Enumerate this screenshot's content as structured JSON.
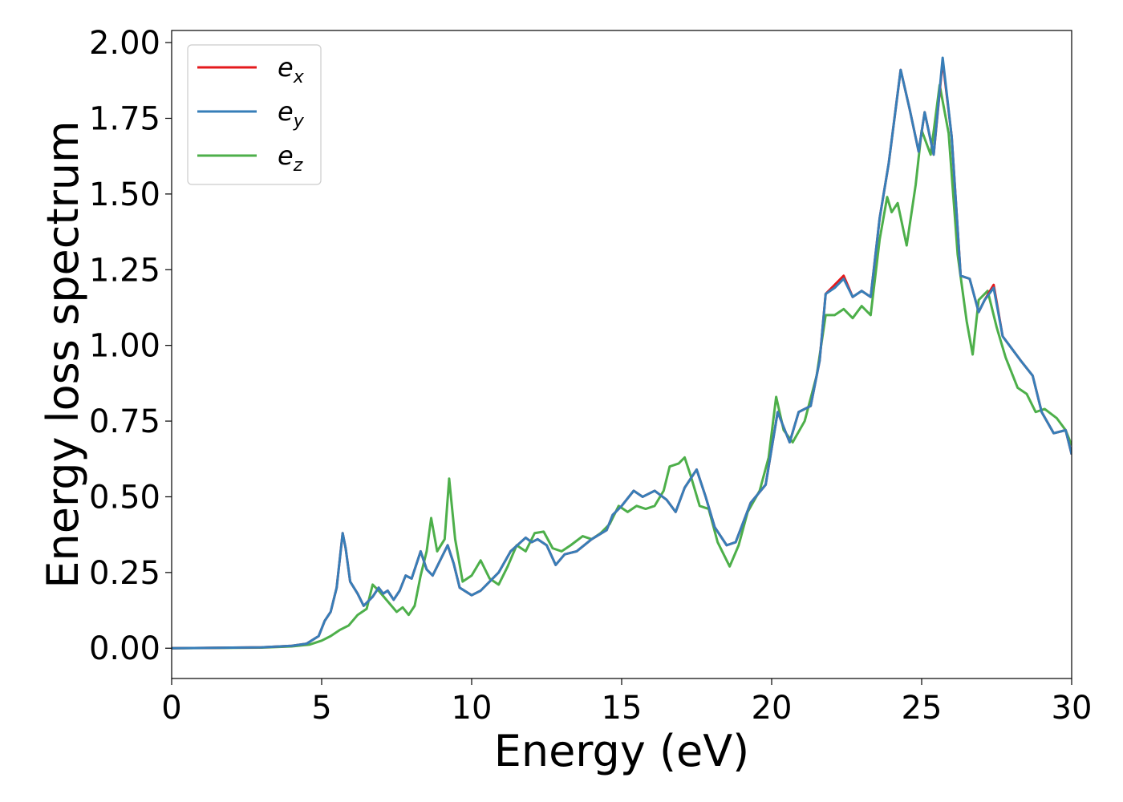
{
  "chart_data": {
    "type": "line",
    "title": "",
    "xlabel": "Energy (eV)",
    "ylabel": "Energy loss spectrum",
    "xlim": [
      0,
      30
    ],
    "ylim": [
      -0.1,
      2.04
    ],
    "xticks": [
      0,
      5,
      10,
      15,
      20,
      25,
      30
    ],
    "xtick_labels": [
      "0",
      "5",
      "10",
      "15",
      "20",
      "25",
      "30"
    ],
    "yticks": [
      0.0,
      0.25,
      0.5,
      0.75,
      1.0,
      1.25,
      1.5,
      1.75,
      2.0
    ],
    "ytick_labels": [
      "0.00",
      "0.25",
      "0.50",
      "0.75",
      "1.00",
      "1.25",
      "1.50",
      "1.75",
      "2.00"
    ],
    "grid": false,
    "legend_position": "top-left",
    "series": [
      {
        "name": "e",
        "subscript": "x",
        "color": "#e41a1c",
        "points": [
          [
            0,
            0
          ],
          [
            3,
            0.003
          ],
          [
            4,
            0.008
          ],
          [
            4.5,
            0.015
          ],
          [
            4.9,
            0.04
          ],
          [
            5.1,
            0.09
          ],
          [
            5.3,
            0.12
          ],
          [
            5.5,
            0.2
          ],
          [
            5.7,
            0.38
          ],
          [
            5.8,
            0.33
          ],
          [
            5.95,
            0.22
          ],
          [
            6.2,
            0.18
          ],
          [
            6.4,
            0.14
          ],
          [
            6.7,
            0.17
          ],
          [
            6.9,
            0.2
          ],
          [
            7.05,
            0.18
          ],
          [
            7.2,
            0.19
          ],
          [
            7.4,
            0.16
          ],
          [
            7.6,
            0.19
          ],
          [
            7.8,
            0.24
          ],
          [
            8.0,
            0.23
          ],
          [
            8.3,
            0.32
          ],
          [
            8.5,
            0.26
          ],
          [
            8.7,
            0.24
          ],
          [
            8.9,
            0.28
          ],
          [
            9.2,
            0.34
          ],
          [
            9.4,
            0.28
          ],
          [
            9.6,
            0.2
          ],
          [
            10.0,
            0.175
          ],
          [
            10.3,
            0.19
          ],
          [
            10.6,
            0.22
          ],
          [
            10.9,
            0.25
          ],
          [
            11.3,
            0.32
          ],
          [
            11.8,
            0.365
          ],
          [
            12.0,
            0.35
          ],
          [
            12.2,
            0.36
          ],
          [
            12.5,
            0.34
          ],
          [
            12.8,
            0.275
          ],
          [
            13.1,
            0.31
          ],
          [
            13.5,
            0.32
          ],
          [
            14.0,
            0.36
          ],
          [
            14.5,
            0.39
          ],
          [
            14.7,
            0.44
          ],
          [
            15.0,
            0.47
          ],
          [
            15.4,
            0.52
          ],
          [
            15.7,
            0.5
          ],
          [
            16.1,
            0.52
          ],
          [
            16.5,
            0.49
          ],
          [
            16.8,
            0.45
          ],
          [
            17.1,
            0.53
          ],
          [
            17.5,
            0.59
          ],
          [
            17.8,
            0.5
          ],
          [
            18.1,
            0.4
          ],
          [
            18.5,
            0.34
          ],
          [
            18.8,
            0.35
          ],
          [
            19.3,
            0.48
          ],
          [
            19.8,
            0.54
          ],
          [
            20.2,
            0.78
          ],
          [
            20.6,
            0.68
          ],
          [
            20.9,
            0.78
          ],
          [
            21.3,
            0.8
          ],
          [
            21.6,
            0.95
          ],
          [
            21.8,
            1.17
          ],
          [
            22.1,
            1.2
          ],
          [
            22.4,
            1.23
          ],
          [
            22.7,
            1.16
          ],
          [
            23.0,
            1.18
          ],
          [
            23.3,
            1.16
          ],
          [
            23.6,
            1.42
          ],
          [
            23.9,
            1.6
          ],
          [
            24.3,
            1.91
          ],
          [
            24.6,
            1.78
          ],
          [
            24.9,
            1.64
          ],
          [
            25.1,
            1.77
          ],
          [
            25.4,
            1.63
          ],
          [
            25.7,
            1.94
          ],
          [
            26.0,
            1.69
          ],
          [
            26.3,
            1.23
          ],
          [
            26.6,
            1.22
          ],
          [
            26.9,
            1.11
          ],
          [
            27.1,
            1.15
          ],
          [
            27.4,
            1.2
          ],
          [
            27.7,
            1.03
          ],
          [
            28.0,
            0.99
          ],
          [
            28.3,
            0.95
          ],
          [
            28.7,
            0.9
          ],
          [
            29.0,
            0.78
          ],
          [
            29.4,
            0.71
          ],
          [
            29.8,
            0.72
          ],
          [
            30,
            0.64
          ]
        ]
      },
      {
        "name": "e",
        "subscript": "y",
        "color": "#377eb8",
        "points": [
          [
            0,
            0
          ],
          [
            3,
            0.003
          ],
          [
            4,
            0.008
          ],
          [
            4.5,
            0.015
          ],
          [
            4.9,
            0.04
          ],
          [
            5.1,
            0.09
          ],
          [
            5.3,
            0.12
          ],
          [
            5.5,
            0.2
          ],
          [
            5.7,
            0.38
          ],
          [
            5.8,
            0.33
          ],
          [
            5.95,
            0.22
          ],
          [
            6.2,
            0.18
          ],
          [
            6.4,
            0.14
          ],
          [
            6.7,
            0.17
          ],
          [
            6.9,
            0.2
          ],
          [
            7.05,
            0.18
          ],
          [
            7.2,
            0.19
          ],
          [
            7.4,
            0.16
          ],
          [
            7.6,
            0.19
          ],
          [
            7.8,
            0.24
          ],
          [
            8.0,
            0.23
          ],
          [
            8.3,
            0.32
          ],
          [
            8.5,
            0.26
          ],
          [
            8.7,
            0.24
          ],
          [
            8.9,
            0.28
          ],
          [
            9.2,
            0.34
          ],
          [
            9.4,
            0.28
          ],
          [
            9.6,
            0.2
          ],
          [
            10.0,
            0.175
          ],
          [
            10.3,
            0.19
          ],
          [
            10.6,
            0.22
          ],
          [
            10.9,
            0.25
          ],
          [
            11.3,
            0.32
          ],
          [
            11.8,
            0.365
          ],
          [
            12.0,
            0.35
          ],
          [
            12.2,
            0.36
          ],
          [
            12.5,
            0.34
          ],
          [
            12.8,
            0.275
          ],
          [
            13.1,
            0.31
          ],
          [
            13.5,
            0.32
          ],
          [
            14.0,
            0.36
          ],
          [
            14.5,
            0.39
          ],
          [
            14.7,
            0.44
          ],
          [
            15.0,
            0.47
          ],
          [
            15.4,
            0.52
          ],
          [
            15.7,
            0.5
          ],
          [
            16.1,
            0.52
          ],
          [
            16.5,
            0.49
          ],
          [
            16.8,
            0.45
          ],
          [
            17.1,
            0.53
          ],
          [
            17.5,
            0.59
          ],
          [
            17.8,
            0.5
          ],
          [
            18.1,
            0.4
          ],
          [
            18.5,
            0.34
          ],
          [
            18.8,
            0.35
          ],
          [
            19.3,
            0.48
          ],
          [
            19.8,
            0.54
          ],
          [
            20.2,
            0.78
          ],
          [
            20.6,
            0.68
          ],
          [
            20.9,
            0.78
          ],
          [
            21.3,
            0.8
          ],
          [
            21.6,
            0.95
          ],
          [
            21.8,
            1.17
          ],
          [
            22.1,
            1.19
          ],
          [
            22.4,
            1.22
          ],
          [
            22.7,
            1.16
          ],
          [
            23.0,
            1.18
          ],
          [
            23.3,
            1.16
          ],
          [
            23.6,
            1.42
          ],
          [
            23.9,
            1.6
          ],
          [
            24.3,
            1.91
          ],
          [
            24.6,
            1.78
          ],
          [
            24.9,
            1.64
          ],
          [
            25.1,
            1.77
          ],
          [
            25.4,
            1.63
          ],
          [
            25.7,
            1.95
          ],
          [
            26.0,
            1.69
          ],
          [
            26.3,
            1.23
          ],
          [
            26.6,
            1.22
          ],
          [
            26.9,
            1.11
          ],
          [
            27.1,
            1.15
          ],
          [
            27.4,
            1.19
          ],
          [
            27.7,
            1.03
          ],
          [
            28.0,
            0.99
          ],
          [
            28.3,
            0.95
          ],
          [
            28.7,
            0.9
          ],
          [
            29.0,
            0.78
          ],
          [
            29.4,
            0.71
          ],
          [
            29.8,
            0.72
          ],
          [
            30,
            0.64
          ]
        ]
      },
      {
        "name": "e",
        "subscript": "z",
        "color": "#4daf4a",
        "points": [
          [
            0,
            0
          ],
          [
            3,
            0.002
          ],
          [
            4,
            0.006
          ],
          [
            4.6,
            0.012
          ],
          [
            5.0,
            0.025
          ],
          [
            5.3,
            0.04
          ],
          [
            5.6,
            0.06
          ],
          [
            5.9,
            0.075
          ],
          [
            6.2,
            0.11
          ],
          [
            6.5,
            0.13
          ],
          [
            6.7,
            0.21
          ],
          [
            6.9,
            0.19
          ],
          [
            7.2,
            0.155
          ],
          [
            7.5,
            0.12
          ],
          [
            7.7,
            0.135
          ],
          [
            7.9,
            0.11
          ],
          [
            8.1,
            0.14
          ],
          [
            8.3,
            0.24
          ],
          [
            8.5,
            0.32
          ],
          [
            8.65,
            0.43
          ],
          [
            8.85,
            0.32
          ],
          [
            9.1,
            0.36
          ],
          [
            9.25,
            0.56
          ],
          [
            9.45,
            0.36
          ],
          [
            9.7,
            0.22
          ],
          [
            10.0,
            0.24
          ],
          [
            10.3,
            0.29
          ],
          [
            10.6,
            0.23
          ],
          [
            10.9,
            0.21
          ],
          [
            11.2,
            0.27
          ],
          [
            11.5,
            0.34
          ],
          [
            11.8,
            0.32
          ],
          [
            12.1,
            0.38
          ],
          [
            12.4,
            0.385
          ],
          [
            12.7,
            0.33
          ],
          [
            13.0,
            0.32
          ],
          [
            13.3,
            0.34
          ],
          [
            13.7,
            0.37
          ],
          [
            14.0,
            0.36
          ],
          [
            14.3,
            0.38
          ],
          [
            14.6,
            0.41
          ],
          [
            14.9,
            0.47
          ],
          [
            15.2,
            0.45
          ],
          [
            15.5,
            0.47
          ],
          [
            15.8,
            0.46
          ],
          [
            16.1,
            0.47
          ],
          [
            16.4,
            0.52
          ],
          [
            16.6,
            0.6
          ],
          [
            16.9,
            0.61
          ],
          [
            17.1,
            0.63
          ],
          [
            17.3,
            0.57
          ],
          [
            17.6,
            0.47
          ],
          [
            17.9,
            0.46
          ],
          [
            18.2,
            0.35
          ],
          [
            18.6,
            0.27
          ],
          [
            18.9,
            0.34
          ],
          [
            19.2,
            0.45
          ],
          [
            19.6,
            0.52
          ],
          [
            19.9,
            0.63
          ],
          [
            20.15,
            0.83
          ],
          [
            20.4,
            0.72
          ],
          [
            20.7,
            0.68
          ],
          [
            21.1,
            0.75
          ],
          [
            21.5,
            0.9
          ],
          [
            21.8,
            1.1
          ],
          [
            22.1,
            1.1
          ],
          [
            22.4,
            1.12
          ],
          [
            22.7,
            1.09
          ],
          [
            23.0,
            1.13
          ],
          [
            23.3,
            1.1
          ],
          [
            23.6,
            1.35
          ],
          [
            23.85,
            1.49
          ],
          [
            24.0,
            1.44
          ],
          [
            24.2,
            1.47
          ],
          [
            24.5,
            1.33
          ],
          [
            24.8,
            1.53
          ],
          [
            25.0,
            1.71
          ],
          [
            25.3,
            1.63
          ],
          [
            25.6,
            1.86
          ],
          [
            25.9,
            1.7
          ],
          [
            26.2,
            1.3
          ],
          [
            26.5,
            1.08
          ],
          [
            26.7,
            0.97
          ],
          [
            26.9,
            1.15
          ],
          [
            27.2,
            1.18
          ],
          [
            27.5,
            1.06
          ],
          [
            27.8,
            0.96
          ],
          [
            28.2,
            0.86
          ],
          [
            28.5,
            0.84
          ],
          [
            28.8,
            0.78
          ],
          [
            29.1,
            0.79
          ],
          [
            29.5,
            0.76
          ],
          [
            29.8,
            0.72
          ],
          [
            30,
            0.67
          ]
        ]
      }
    ]
  }
}
